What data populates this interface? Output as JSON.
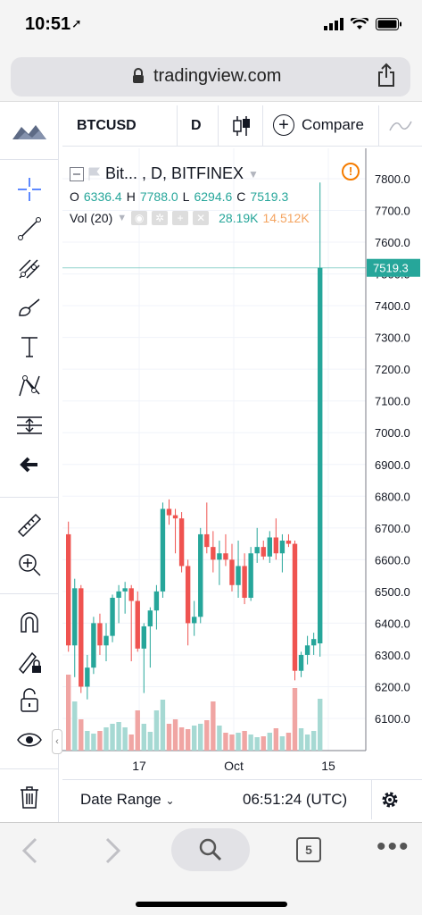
{
  "status": {
    "time": "10:51",
    "location_arrow": "location-arrow-icon"
  },
  "browser": {
    "url": "tradingview.com",
    "tab_count": "5"
  },
  "toolbar": {
    "symbol": "BTCUSD",
    "interval": "D",
    "compare_label": "Compare"
  },
  "legend": {
    "title": "Bit... , D, BITFINEX",
    "open_label": "O",
    "open": "6336.4",
    "high_label": "H",
    "high": "7788.0",
    "low_label": "L",
    "low": "6294.6",
    "close_label": "C",
    "close": "7519.3",
    "vol_label": "Vol (20)",
    "vol_value1": "28.19K",
    "vol_value2": "14.512K"
  },
  "bottom_bar": {
    "date_range": "Date Range",
    "time": "06:51:24 (UTC)"
  },
  "colors": {
    "up": "#26a69a",
    "down": "#ef5350",
    "vol_up": "#a6d9d3",
    "vol_down": "#f0a5a3",
    "accent": "#2962ff"
  },
  "chart_data": {
    "type": "candlestick",
    "price_axis_ticks": [
      "7800.0",
      "7700.0",
      "7600.0",
      "7500.0",
      "7400.0",
      "7300.0",
      "7200.0",
      "7100.0",
      "7000.0",
      "6900.0",
      "6800.0",
      "6700.0",
      "6600.0",
      "6500.0",
      "6400.0",
      "6300.0",
      "6200.0",
      "6100.0"
    ],
    "time_axis_labels": [
      "17",
      "Oct",
      "15"
    ],
    "last_price_label": "7519.3",
    "ylim": [
      6000,
      7850
    ],
    "candles": [
      {
        "o": 6680,
        "h": 6720,
        "l": 6310,
        "c": 6330,
        "v": 0.85
      },
      {
        "o": 6330,
        "h": 6540,
        "l": 6230,
        "c": 6510,
        "v": 0.55
      },
      {
        "o": 6510,
        "h": 6520,
        "l": 6180,
        "c": 6200,
        "v": 0.35
      },
      {
        "o": 6200,
        "h": 6300,
        "l": 6160,
        "c": 6260,
        "v": 0.22
      },
      {
        "o": 6260,
        "h": 6420,
        "l": 6240,
        "c": 6400,
        "v": 0.19
      },
      {
        "o": 6400,
        "h": 6430,
        "l": 6300,
        "c": 6330,
        "v": 0.22
      },
      {
        "o": 6330,
        "h": 6400,
        "l": 6280,
        "c": 6360,
        "v": 0.26
      },
      {
        "o": 6360,
        "h": 6490,
        "l": 6340,
        "c": 6480,
        "v": 0.3
      },
      {
        "o": 6480,
        "h": 6520,
        "l": 6400,
        "c": 6500,
        "v": 0.32
      },
      {
        "o": 6500,
        "h": 6530,
        "l": 6430,
        "c": 6510,
        "v": 0.26
      },
      {
        "o": 6510,
        "h": 6520,
        "l": 6280,
        "c": 6470,
        "v": 0.18
      },
      {
        "o": 6470,
        "h": 6500,
        "l": 6310,
        "c": 6320,
        "v": 0.45
      },
      {
        "o": 6320,
        "h": 6400,
        "l": 6180,
        "c": 6390,
        "v": 0.3
      },
      {
        "o": 6390,
        "h": 6450,
        "l": 6260,
        "c": 6440,
        "v": 0.21
      },
      {
        "o": 6440,
        "h": 6520,
        "l": 6380,
        "c": 6500,
        "v": 0.45
      },
      {
        "o": 6500,
        "h": 6780,
        "l": 6480,
        "c": 6760,
        "v": 0.57
      },
      {
        "o": 6760,
        "h": 6790,
        "l": 6710,
        "c": 6740,
        "v": 0.3
      },
      {
        "o": 6740,
        "h": 6760,
        "l": 6620,
        "c": 6730,
        "v": 0.35
      },
      {
        "o": 6730,
        "h": 6750,
        "l": 6560,
        "c": 6580,
        "v": 0.26
      },
      {
        "o": 6580,
        "h": 6600,
        "l": 6330,
        "c": 6400,
        "v": 0.24
      },
      {
        "o": 6400,
        "h": 6470,
        "l": 6360,
        "c": 6420,
        "v": 0.28
      },
      {
        "o": 6420,
        "h": 6700,
        "l": 6400,
        "c": 6680,
        "v": 0.3
      },
      {
        "o": 6680,
        "h": 6780,
        "l": 6620,
        "c": 6640,
        "v": 0.34
      },
      {
        "o": 6640,
        "h": 6690,
        "l": 6560,
        "c": 6600,
        "v": 0.55
      },
      {
        "o": 6600,
        "h": 6660,
        "l": 6520,
        "c": 6620,
        "v": 0.28
      },
      {
        "o": 6620,
        "h": 6680,
        "l": 6580,
        "c": 6600,
        "v": 0.2
      },
      {
        "o": 6600,
        "h": 6650,
        "l": 6500,
        "c": 6520,
        "v": 0.18
      },
      {
        "o": 6520,
        "h": 6660,
        "l": 6480,
        "c": 6580,
        "v": 0.2
      },
      {
        "o": 6580,
        "h": 6620,
        "l": 6460,
        "c": 6480,
        "v": 0.22
      },
      {
        "o": 6480,
        "h": 6640,
        "l": 6470,
        "c": 6620,
        "v": 0.18
      },
      {
        "o": 6620,
        "h": 6700,
        "l": 6590,
        "c": 6640,
        "v": 0.15
      },
      {
        "o": 6640,
        "h": 6660,
        "l": 6600,
        "c": 6610,
        "v": 0.16
      },
      {
        "o": 6610,
        "h": 6690,
        "l": 6590,
        "c": 6670,
        "v": 0.2
      },
      {
        "o": 6670,
        "h": 6730,
        "l": 6600,
        "c": 6620,
        "v": 0.25
      },
      {
        "o": 6620,
        "h": 6680,
        "l": 6560,
        "c": 6660,
        "v": 0.16
      },
      {
        "o": 6660,
        "h": 6680,
        "l": 6640,
        "c": 6650,
        "v": 0.2
      },
      {
        "o": 6650,
        "h": 6660,
        "l": 6220,
        "c": 6250,
        "v": 0.7
      },
      {
        "o": 6250,
        "h": 6310,
        "l": 6230,
        "c": 6300,
        "v": 0.25
      },
      {
        "o": 6300,
        "h": 6360,
        "l": 6270,
        "c": 6330,
        "v": 0.18
      },
      {
        "o": 6330,
        "h": 6370,
        "l": 6300,
        "c": 6350,
        "v": 0.22
      },
      {
        "o": 6336.4,
        "h": 7788.0,
        "l": 6294.6,
        "c": 7519.3,
        "v": 0.58
      }
    ]
  }
}
